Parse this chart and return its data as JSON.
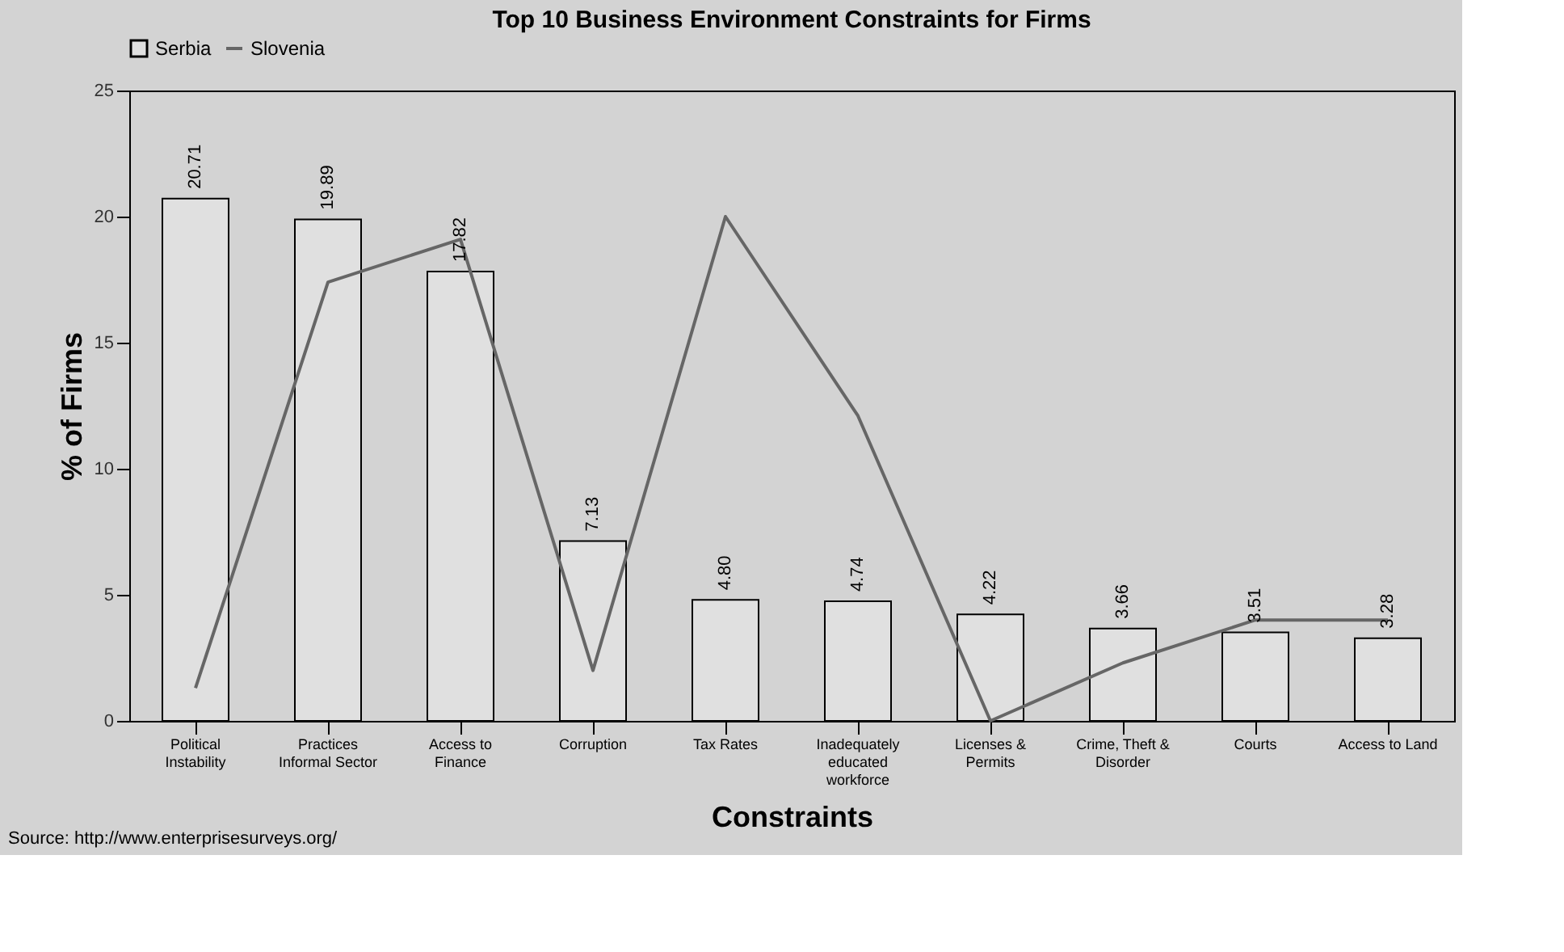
{
  "chart_data": {
    "type": "bar",
    "title": "Top 10 Business Environment Constraints for Firms",
    "xlabel": "Constraints",
    "ylabel": "% of Firms",
    "categories": [
      "Political Instability",
      "Practices Informal Sector",
      "Access to Finance",
      "Corruption",
      "Tax Rates",
      "Inadequately educated workforce",
      "Licenses & Permits",
      "Crime, Theft & Disorder",
      "Courts",
      "Access to Land"
    ],
    "series": [
      {
        "name": "Slovenia",
        "type": "line",
        "color": "#666666",
        "values": [
          1.3,
          17.4,
          19.1,
          2.0,
          20.0,
          12.1,
          0.0,
          2.3,
          4.0,
          4.0
        ]
      },
      {
        "name": "Serbia",
        "color": "#e0e0e0",
        "values": [
          20.71,
          19.89,
          17.82,
          7.13,
          4.8,
          4.74,
          4.22,
          3.66,
          3.51,
          3.28
        ],
        "value_labels": [
          "20.71",
          "19.89",
          "17.82",
          "7.13",
          "4.80",
          "4.74",
          "4.22",
          "3.66",
          "3.51",
          "3.28"
        ]
      }
    ],
    "ylim": [
      0,
      25
    ],
    "yticks": [
      0,
      5,
      10,
      15,
      20,
      25
    ],
    "grid": false,
    "legend": "top",
    "marker": "none",
    "line_style": "solid",
    "annotations": [
      "Source: http://www.enterprisesurveys.org/"
    ]
  }
}
